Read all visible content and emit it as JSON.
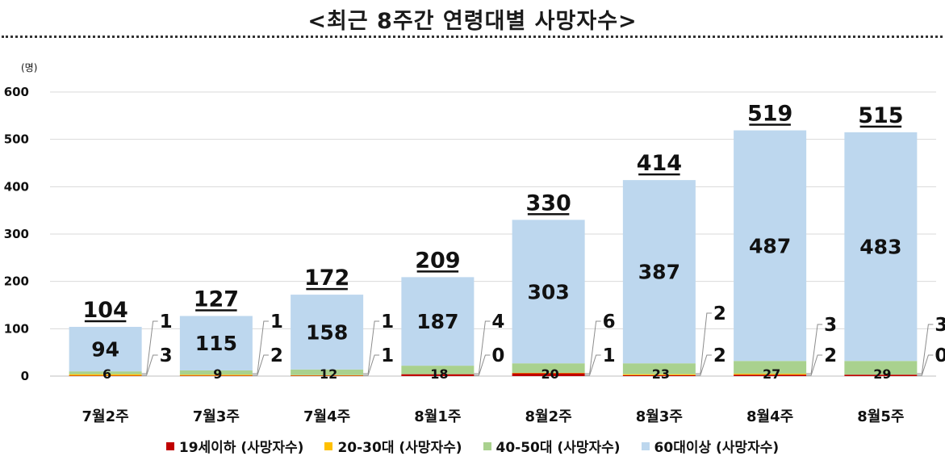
{
  "title": "<최근 8주간 연령대별 사망자수>",
  "chart_data": {
    "type": "bar",
    "stacked": true,
    "unit_label": "(명)",
    "ylim": [
      0,
      600
    ],
    "yticks": [
      "0",
      "100",
      "200",
      "300",
      "400",
      "500",
      "600"
    ],
    "categories": [
      "7월2주",
      "7월3주",
      "7월4주",
      "8월1주",
      "8월2주",
      "8월3주",
      "8월4주",
      "8월5주"
    ],
    "totals": [
      104,
      127,
      172,
      209,
      330,
      414,
      519,
      515
    ],
    "series": [
      {
        "name": "19세이하 (사망자수)",
        "color": "#c00000",
        "values": [
          1,
          1,
          1,
          4,
          6,
          2,
          3,
          3
        ]
      },
      {
        "name": "20-30대 (사망자수)",
        "color": "#ffc000",
        "values": [
          3,
          2,
          1,
          0,
          1,
          2,
          2,
          0
        ]
      },
      {
        "name": "40-50대 (사망자수)",
        "color": "#a9d18e",
        "values": [
          6,
          9,
          12,
          18,
          20,
          23,
          27,
          29
        ]
      },
      {
        "name": "60대이상 (사망자수)",
        "color": "#bdd7ee",
        "values": [
          94,
          115,
          158,
          187,
          303,
          387,
          487,
          483
        ]
      }
    ],
    "grid": true,
    "legend_position": "bottom"
  }
}
